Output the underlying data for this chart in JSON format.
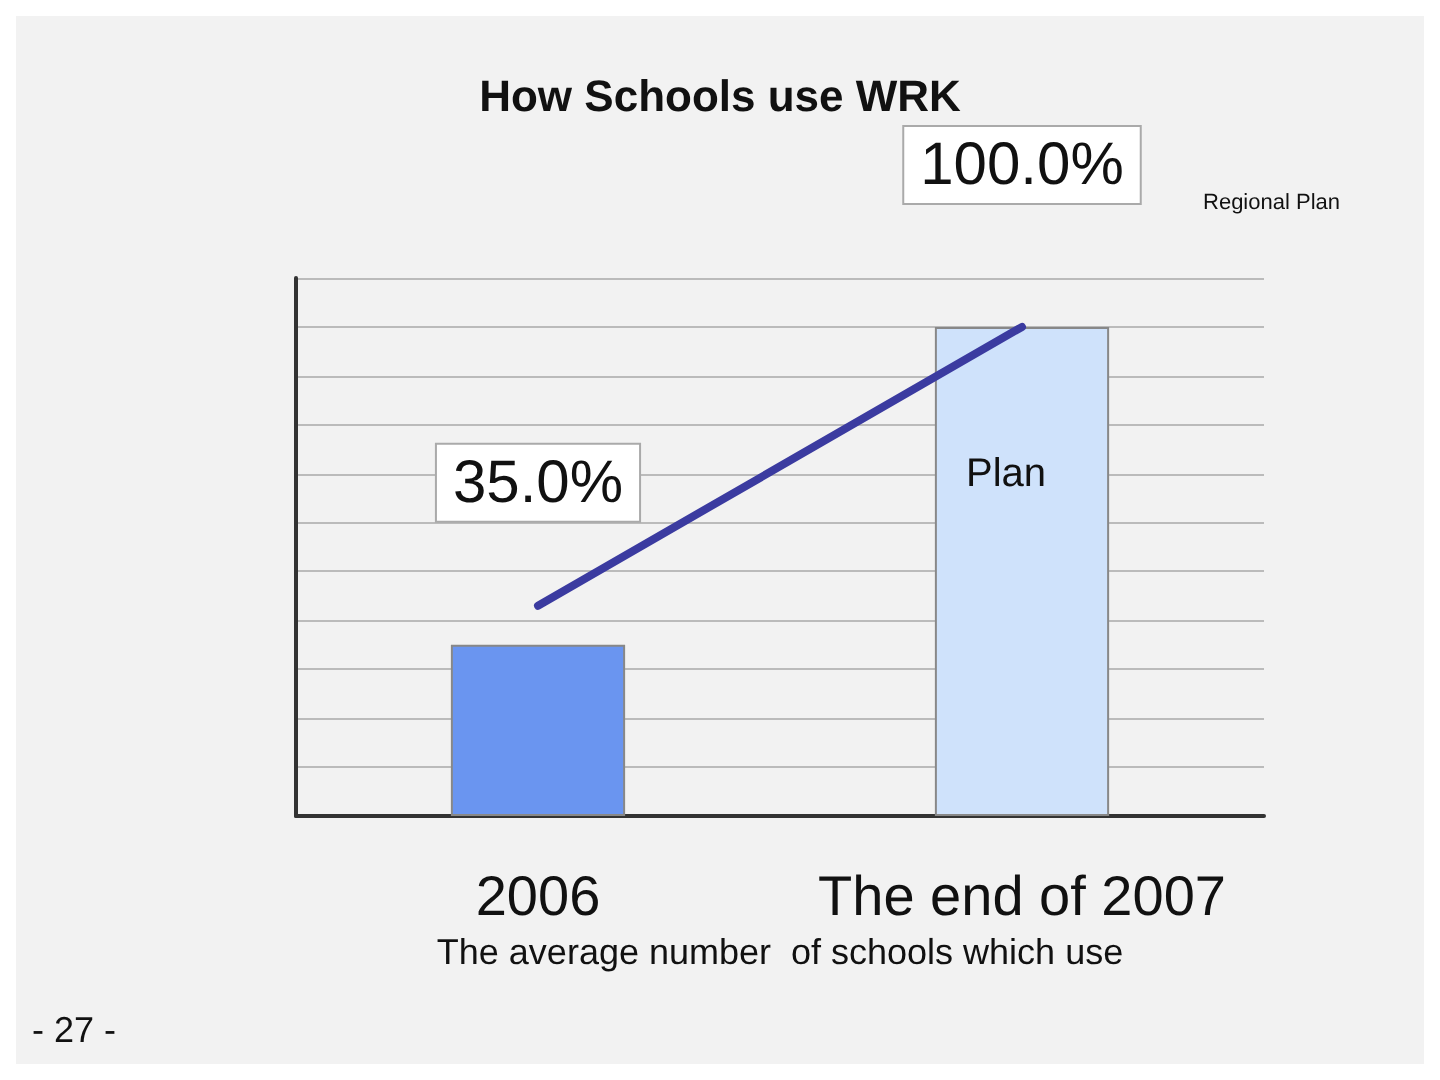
{
  "chart_data": {
    "type": "bar",
    "title": "How Schools use WRK",
    "xlabel": "The average number  of schools which use",
    "categories": [
      "2006",
      "The end of 2007"
    ],
    "series": [
      {
        "colors": [
          "#6a95f0",
          "#cfe2fb"
        ],
        "values": [
          35,
          100
        ],
        "value_labels": [
          "35.0%",
          "100.0%"
        ]
      },
      {
        "type": "line",
        "name": "Plan",
        "color": "#3b3ba0",
        "values": [
          43,
          100
        ]
      }
    ],
    "tick_labels": "x",
    "grid": "y",
    "legend": false,
    "marker": "none",
    "annotations": [
      "Regional Plan",
      "- 27 -"
    ]
  }
}
